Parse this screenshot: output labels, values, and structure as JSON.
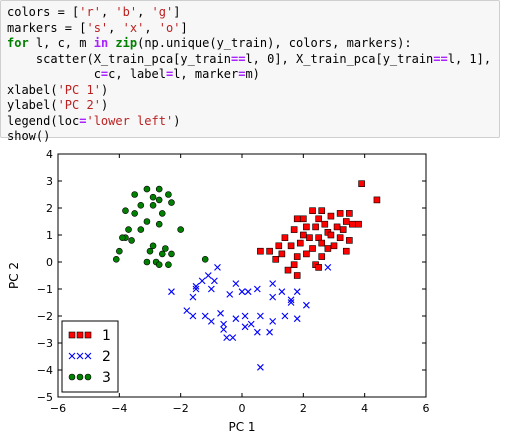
{
  "code": {
    "lines": [
      [
        {
          "t": "colors = ["
        },
        {
          "t": "'r'",
          "c": "str"
        },
        {
          "t": ", "
        },
        {
          "t": "'b'",
          "c": "str"
        },
        {
          "t": ", "
        },
        {
          "t": "'g'",
          "c": "str"
        },
        {
          "t": "]"
        }
      ],
      [
        {
          "t": "markers = ["
        },
        {
          "t": "'s'",
          "c": "str"
        },
        {
          "t": ", "
        },
        {
          "t": "'x'",
          "c": "str"
        },
        {
          "t": ", "
        },
        {
          "t": "'o'",
          "c": "str"
        },
        {
          "t": "]"
        }
      ],
      [
        {
          "t": "for",
          "c": "kw"
        },
        {
          "t": " l, c, m "
        },
        {
          "t": "in",
          "c": "op"
        },
        {
          "t": " "
        },
        {
          "t": "zip",
          "c": "kw"
        },
        {
          "t": "(np.unique(y_train), colors, markers):"
        }
      ],
      [
        {
          "t": "    scatter(X_train_pca[y_train"
        },
        {
          "t": "==",
          "c": "op"
        },
        {
          "t": "l, 0], X_train_pca[y_train"
        },
        {
          "t": "==",
          "c": "op"
        },
        {
          "t": "l, 1],"
        }
      ],
      [
        {
          "t": "            c"
        },
        {
          "t": "=",
          "c": "op"
        },
        {
          "t": "c, label"
        },
        {
          "t": "=",
          "c": "op"
        },
        {
          "t": "l, marker"
        },
        {
          "t": "=",
          "c": "op"
        },
        {
          "t": "m)"
        }
      ],
      [
        {
          "t": "xlabel("
        },
        {
          "t": "'PC 1'",
          "c": "str"
        },
        {
          "t": ")"
        }
      ],
      [
        {
          "t": "ylabel("
        },
        {
          "t": "'PC 2'",
          "c": "str"
        },
        {
          "t": ")"
        }
      ],
      [
        {
          "t": "legend(loc"
        },
        {
          "t": "=",
          "c": "op"
        },
        {
          "t": "'lower left'",
          "c": "str"
        },
        {
          "t": ")"
        }
      ],
      [
        {
          "t": "show()"
        }
      ]
    ]
  },
  "chart_data": {
    "type": "scatter",
    "xlabel": "PC 1",
    "ylabel": "PC 2",
    "xlim": [
      -6,
      6
    ],
    "ylim": [
      -5,
      4
    ],
    "xticks": [
      -6,
      -4,
      -2,
      0,
      2,
      4,
      6
    ],
    "yticks": [
      -5,
      -4,
      -3,
      -2,
      -1,
      0,
      1,
      2,
      3,
      4
    ],
    "grid": false,
    "legend": "lower left",
    "series": [
      {
        "name": "1",
        "marker": "s",
        "color": "#ff0000",
        "points": [
          [
            3.9,
            2.9
          ],
          [
            4.4,
            2.3
          ],
          [
            2.3,
            1.9
          ],
          [
            2.6,
            1.9
          ],
          [
            3.2,
            1.8
          ],
          [
            3.5,
            1.8
          ],
          [
            1.8,
            1.6
          ],
          [
            2.0,
            1.6
          ],
          [
            2.5,
            1.6
          ],
          [
            2.9,
            1.7
          ],
          [
            3.4,
            1.5
          ],
          [
            3.6,
            1.4
          ],
          [
            3.8,
            1.4
          ],
          [
            2.1,
            1.3
          ],
          [
            2.4,
            1.3
          ],
          [
            2.7,
            1.4
          ],
          [
            3.1,
            1.3
          ],
          [
            1.7,
            1.2
          ],
          [
            2.8,
            1.1
          ],
          [
            3.3,
            1.2
          ],
          [
            2.0,
            1.0
          ],
          [
            2.2,
            0.9
          ],
          [
            2.5,
            0.9
          ],
          [
            2.9,
            1.0
          ],
          [
            3.2,
            0.9
          ],
          [
            1.4,
            0.9
          ],
          [
            1.9,
            0.7
          ],
          [
            2.6,
            0.7
          ],
          [
            3.0,
            0.6
          ],
          [
            3.5,
            0.8
          ],
          [
            1.2,
            0.6
          ],
          [
            1.6,
            0.6
          ],
          [
            2.3,
            0.5
          ],
          [
            2.8,
            0.5
          ],
          [
            3.4,
            0.4
          ],
          [
            0.9,
            0.4
          ],
          [
            1.3,
            0.3
          ],
          [
            1.8,
            0.2
          ],
          [
            2.1,
            0.3
          ],
          [
            2.6,
            0.2
          ],
          [
            0.6,
            0.4
          ],
          [
            1.1,
            0.1
          ],
          [
            1.7,
            -0.1
          ],
          [
            2.4,
            -0.1
          ],
          [
            1.5,
            -0.3
          ],
          [
            1.8,
            -0.5
          ],
          [
            2.5,
            -0.2
          ]
        ]
      },
      {
        "name": "2",
        "marker": "x",
        "color": "#0000ff",
        "points": [
          [
            -0.8,
            -0.2
          ],
          [
            -1.1,
            -0.5
          ],
          [
            2.8,
            -0.2
          ],
          [
            -2.3,
            -1.1
          ],
          [
            -1.5,
            -0.9
          ],
          [
            -1.3,
            -0.7
          ],
          [
            -1.0,
            -1.0
          ],
          [
            -0.9,
            -0.7
          ],
          [
            -1.5,
            -1.0
          ],
          [
            -1.6,
            -1.3
          ],
          [
            -0.2,
            -0.8
          ],
          [
            0.2,
            -1.1
          ],
          [
            0.5,
            -1.0
          ],
          [
            1.0,
            -0.8
          ],
          [
            1.3,
            -1.1
          ],
          [
            1.8,
            -1.1
          ],
          [
            -0.4,
            -1.2
          ],
          [
            0.0,
            -1.1
          ],
          [
            1.0,
            -1.3
          ],
          [
            1.6,
            -1.4
          ],
          [
            2.1,
            -1.6
          ],
          [
            -1.8,
            -1.8
          ],
          [
            -1.6,
            -2.0
          ],
          [
            -1.2,
            -2.0
          ],
          [
            -0.7,
            -1.9
          ],
          [
            0.1,
            -2.0
          ],
          [
            0.6,
            -2.0
          ],
          [
            1.0,
            -2.2
          ],
          [
            1.4,
            -2.0
          ],
          [
            1.8,
            -2.1
          ],
          [
            -1.0,
            -2.2
          ],
          [
            -0.6,
            -2.3
          ],
          [
            -0.2,
            -2.1
          ],
          [
            0.3,
            -2.3
          ],
          [
            -0.6,
            -2.5
          ],
          [
            -0.3,
            -2.8
          ],
          [
            0.1,
            -2.4
          ],
          [
            -0.5,
            -2.8
          ],
          [
            0.5,
            -2.6
          ],
          [
            0.9,
            -2.6
          ],
          [
            1.6,
            -1.5
          ],
          [
            0.6,
            -3.9
          ]
        ]
      },
      {
        "name": "3",
        "marker": "o",
        "color": "#008000",
        "points": [
          [
            -3.1,
            2.7
          ],
          [
            -2.7,
            2.7
          ],
          [
            -2.4,
            2.5
          ],
          [
            -3.5,
            2.5
          ],
          [
            -2.9,
            2.4
          ],
          [
            -2.7,
            2.3
          ],
          [
            -2.3,
            2.2
          ],
          [
            -3.3,
            2.1
          ],
          [
            -2.9,
            2.1
          ],
          [
            -3.8,
            1.9
          ],
          [
            -3.5,
            1.8
          ],
          [
            -2.6,
            1.8
          ],
          [
            -3.1,
            1.5
          ],
          [
            -2.7,
            1.4
          ],
          [
            -3.7,
            1.2
          ],
          [
            -3.3,
            1.2
          ],
          [
            -2.0,
            1.2
          ],
          [
            -3.8,
            0.9
          ],
          [
            -3.6,
            0.8
          ],
          [
            -3.9,
            0.9
          ],
          [
            -2.9,
            0.6
          ],
          [
            -2.5,
            0.5
          ],
          [
            -4.0,
            0.4
          ],
          [
            -3.0,
            0.4
          ],
          [
            -2.6,
            0.3
          ],
          [
            -2.3,
            0.3
          ],
          [
            -1.2,
            0.1
          ],
          [
            -4.1,
            0.1
          ],
          [
            -3.1,
            0.0
          ],
          [
            -2.8,
            0.0
          ],
          [
            -2.7,
            -0.1
          ],
          [
            -2.4,
            -0.1
          ]
        ]
      }
    ]
  }
}
